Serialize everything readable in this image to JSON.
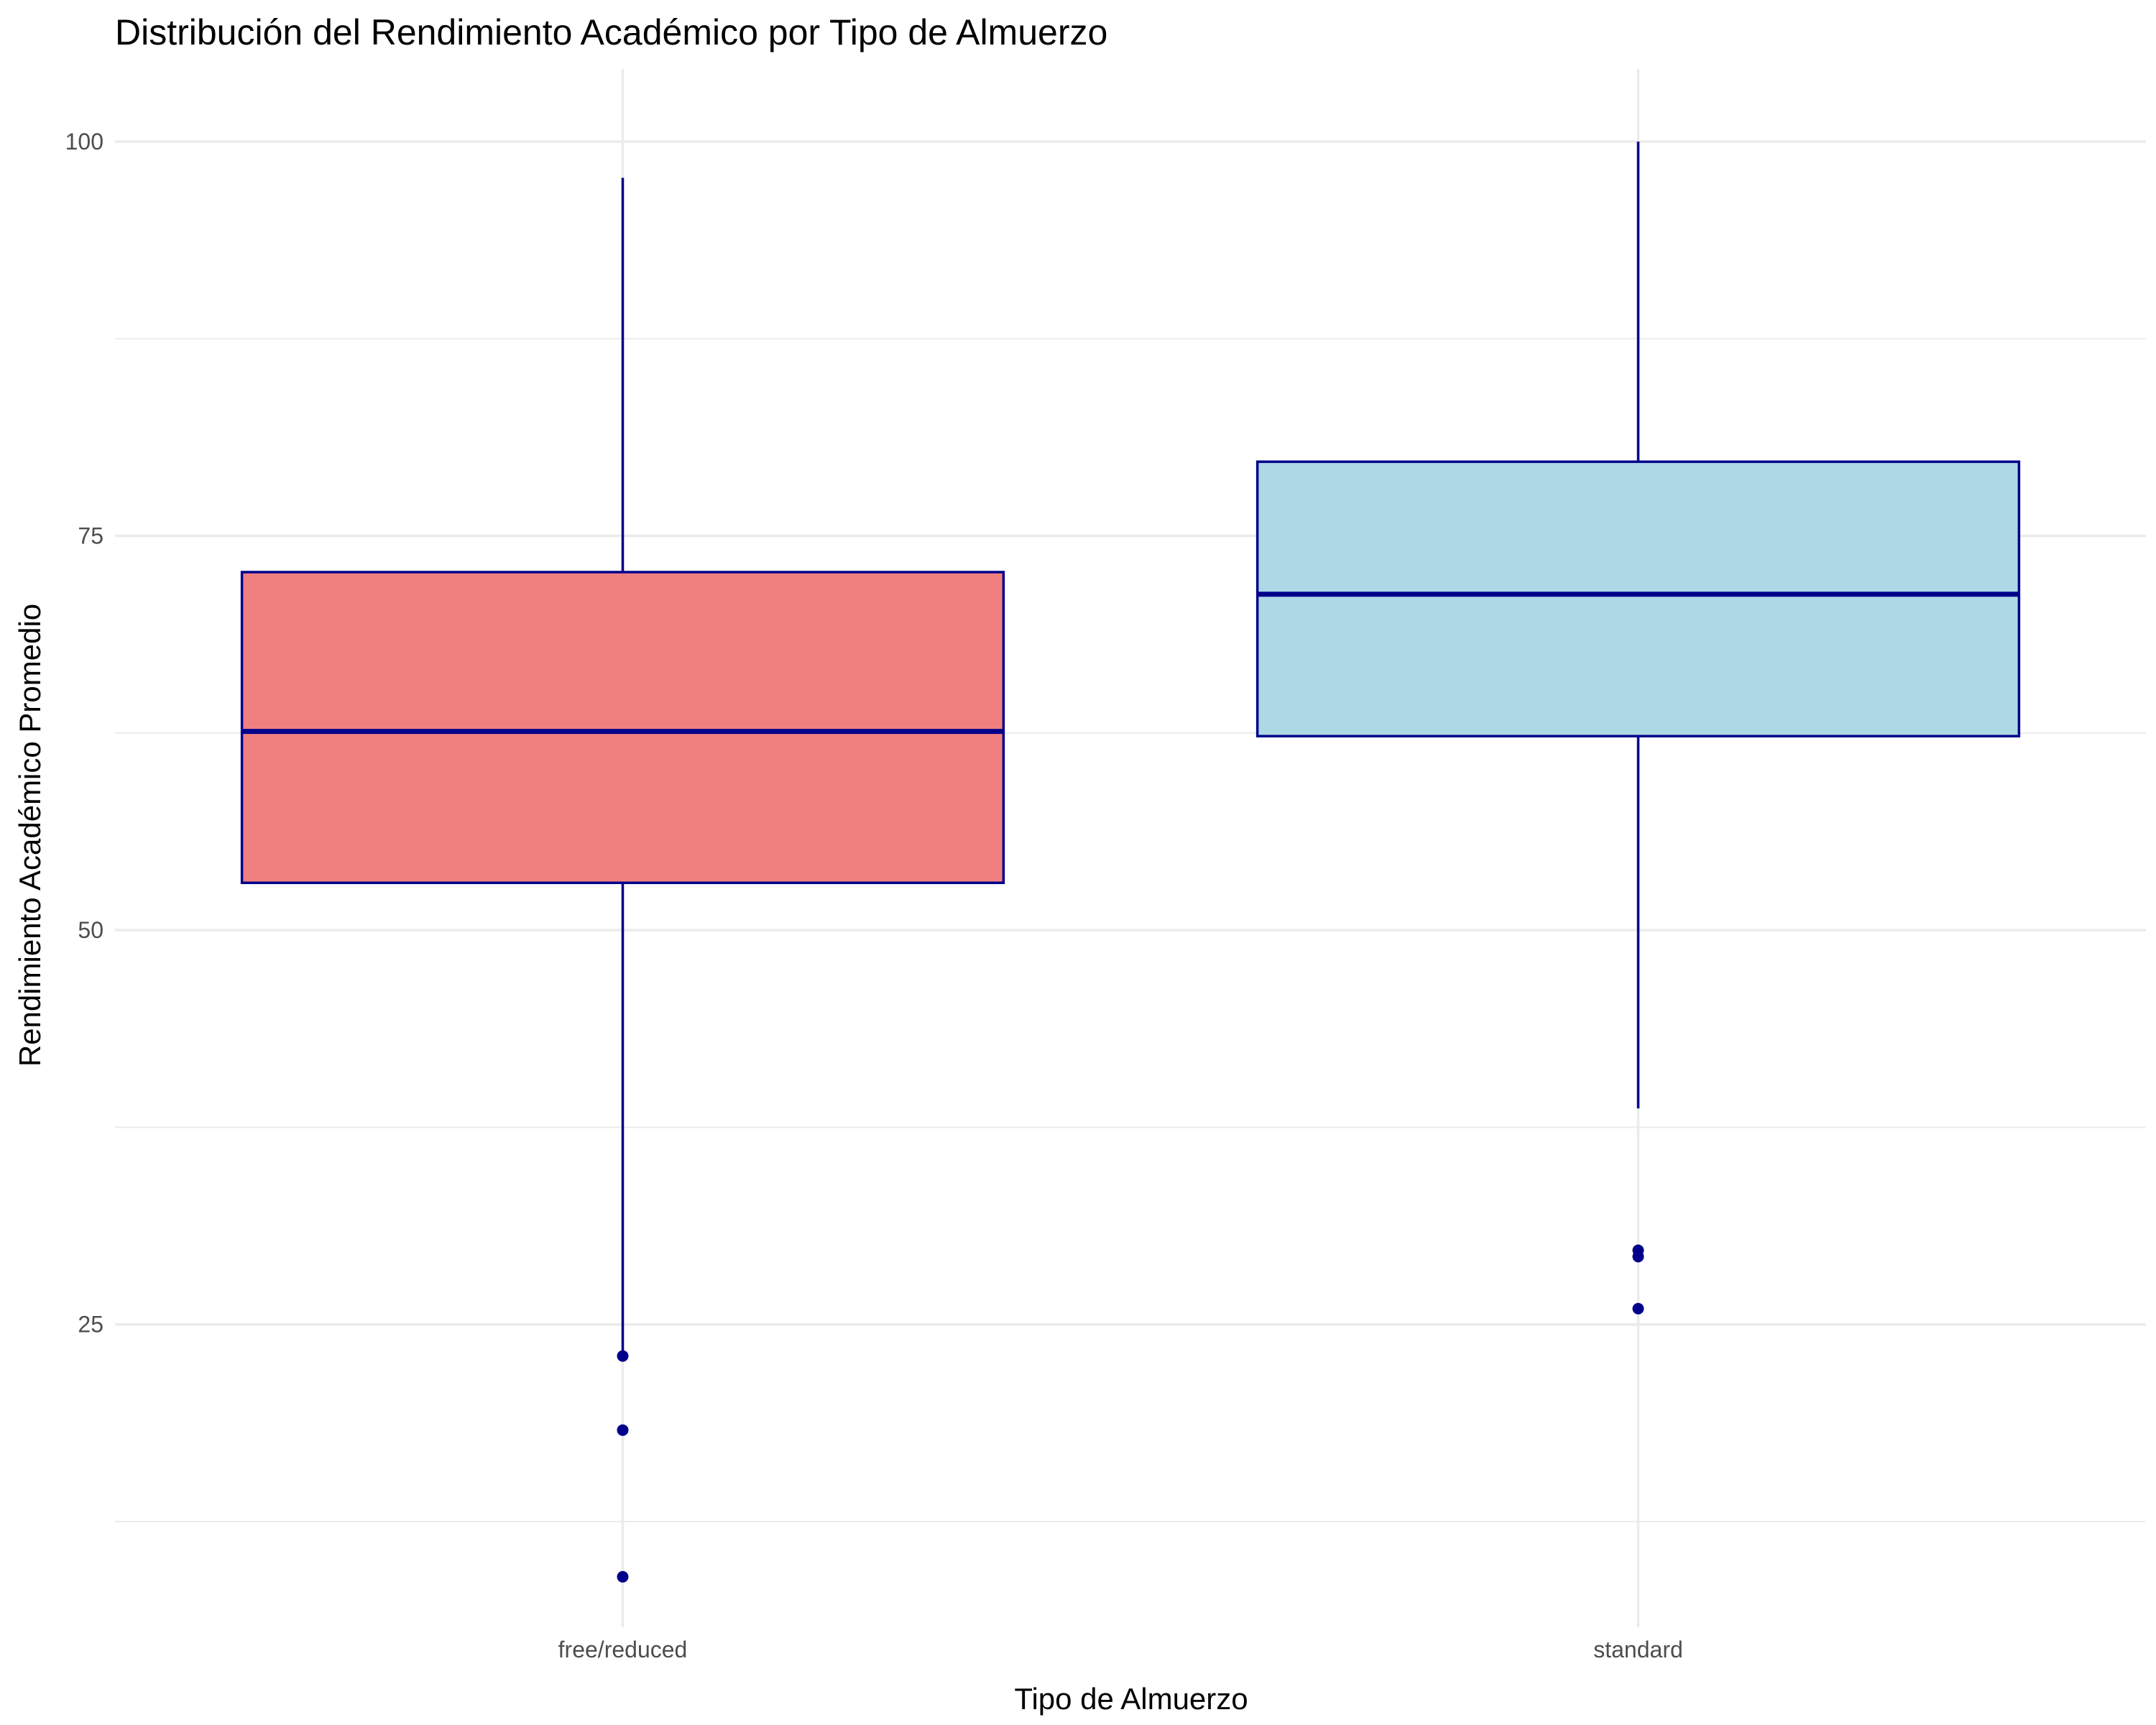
{
  "chart_data": {
    "type": "boxplot",
    "title": "Distribución del Rendimiento Académico por Tipo de Almuerzo",
    "xlabel": "Tipo de Almuerzo",
    "ylabel": "Rendimiento Académico Promedio",
    "categories": [
      "free/reduced",
      "standard"
    ],
    "ylim": [
      5.8,
      104.6
    ],
    "y_ticks": [
      25,
      50,
      75,
      100
    ],
    "y_tick_labels": [
      "25",
      "50",
      "75",
      "100"
    ],
    "grid": true,
    "legend": "none",
    "boxes": [
      {
        "category": "free/reduced",
        "whisker_low": 23.3,
        "q1": 53.0,
        "median": 62.6,
        "q3": 72.7,
        "whisker_high": 97.7,
        "outliers": [
          23.0,
          18.3,
          9.0
        ],
        "fill": "#f08080"
      },
      {
        "category": "standard",
        "whisker_low": 38.7,
        "q1": 62.3,
        "median": 71.3,
        "q3": 79.7,
        "whisker_high": 100,
        "outliers": [
          29.7,
          29.3,
          26.0
        ],
        "fill": "#add8e6"
      }
    ],
    "line_color": "#00008b"
  }
}
